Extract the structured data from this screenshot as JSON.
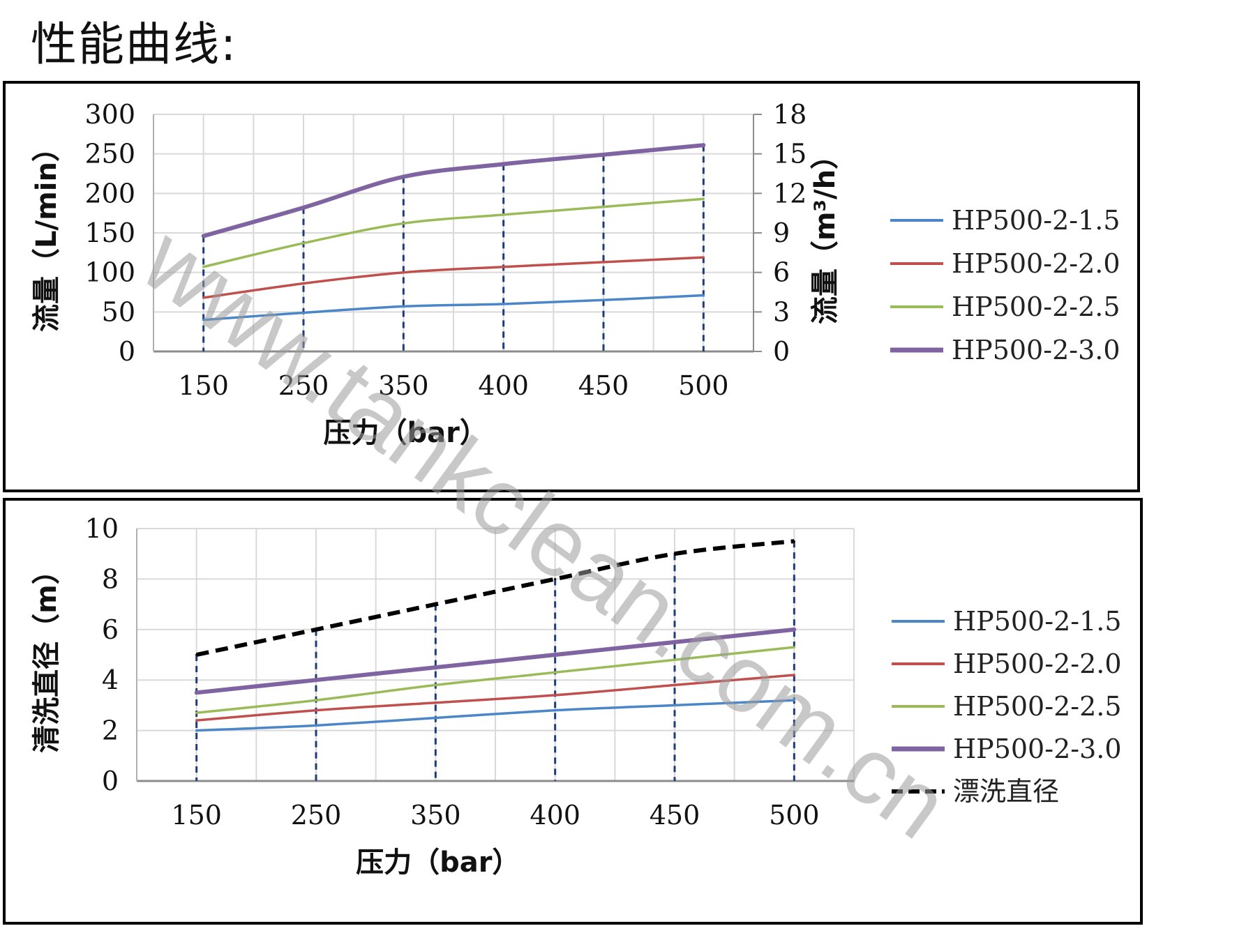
{
  "page_title": "性能曲线:",
  "watermark": "www.tankclean.com.cn",
  "colors": {
    "HP500-2-1.5": "#4a86c8",
    "HP500-2-2.0": "#c0504d",
    "HP500-2-2.5": "#9bbb59",
    "HP500-2-3.0": "#8064a2",
    "rinse": "#000000",
    "dropline": "#1f3c78",
    "grid": "#d9d9d9"
  },
  "chart_data": [
    {
      "type": "line",
      "categories": [
        "150",
        "250",
        "350",
        "400",
        "450",
        "500"
      ],
      "xlabel": "压力（bar）",
      "ylabel": "流量（L/min）",
      "ylim": [
        0,
        300
      ],
      "yticks": [
        "0",
        "50",
        "100",
        "150",
        "200",
        "250",
        "300"
      ],
      "y2label": "流量（m³/h）",
      "y2lim": [
        0,
        18
      ],
      "y2ticks": [
        "0",
        "3",
        "6",
        "9",
        "12",
        "15",
        "18"
      ],
      "grid": true,
      "drop_lines": true,
      "legend_position": "right",
      "series": [
        {
          "name": "HP500-2-1.5",
          "values": [
            40,
            49,
            57,
            60,
            65,
            71
          ]
        },
        {
          "name": "HP500-2-2.0",
          "values": [
            68,
            86,
            100,
            107,
            113,
            119
          ]
        },
        {
          "name": "HP500-2-2.5",
          "values": [
            107,
            137,
            162,
            173,
            183,
            193
          ]
        },
        {
          "name": "HP500-2-3.0",
          "values": [
            146,
            182,
            221,
            237,
            249,
            261
          ]
        }
      ]
    },
    {
      "type": "line",
      "categories": [
        "150",
        "250",
        "350",
        "400",
        "450",
        "500"
      ],
      "xlabel": "压力（bar）",
      "ylabel": "清洗直径（m）",
      "ylim": [
        0,
        10
      ],
      "yticks": [
        "0",
        "2",
        "4",
        "6",
        "8",
        "10"
      ],
      "grid": true,
      "drop_lines": true,
      "legend_position": "right",
      "series": [
        {
          "name": "HP500-2-1.5",
          "values": [
            2.0,
            2.2,
            2.5,
            2.8,
            3.0,
            3.2
          ]
        },
        {
          "name": "HP500-2-2.0",
          "values": [
            2.4,
            2.8,
            3.1,
            3.4,
            3.8,
            4.2
          ]
        },
        {
          "name": "HP500-2-2.5",
          "values": [
            2.7,
            3.2,
            3.8,
            4.3,
            4.8,
            5.3
          ]
        },
        {
          "name": "HP500-2-3.0",
          "values": [
            3.5,
            4.0,
            4.5,
            5.0,
            5.5,
            6.0
          ]
        },
        {
          "name": "漂洗直径",
          "values": [
            5.0,
            6.0,
            7.0,
            8.0,
            9.0,
            9.5
          ],
          "dashed": true
        }
      ]
    }
  ]
}
